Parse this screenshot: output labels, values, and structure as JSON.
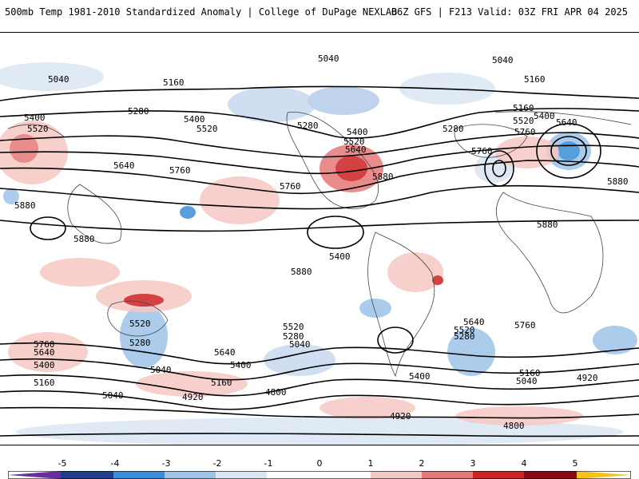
{
  "header": {
    "title_left": "500mb Temp 1981-2010 Standardized Anomaly | College of DuPage NEXLAB",
    "title_right": "06Z GFS | F213 Valid: 03Z FRI APR 04 2025"
  },
  "map": {
    "contour_labels": [
      "5040",
      "5040",
      "5040",
      "5160",
      "5160",
      "5160",
      "5280",
      "5280",
      "5280",
      "5400",
      "5400",
      "5400",
      "5400",
      "5400",
      "5520",
      "5520",
      "5520",
      "5520",
      "5640",
      "5640",
      "5640",
      "5760",
      "5760",
      "5760",
      "5760",
      "5880",
      "5880",
      "5880",
      "5880",
      "5880",
      "5880",
      "5520",
      "5280",
      "5760",
      "5640",
      "5400",
      "5160",
      "5040",
      "5640",
      "5520",
      "5400",
      "5280",
      "5160",
      "5040",
      "4920",
      "4920",
      "4800",
      "4800",
      "5040",
      "5520",
      "5400",
      "5280",
      "5640",
      "5760",
      "5160",
      "5040",
      "4920"
    ]
  },
  "colorbar": {
    "ticks": [
      "-5",
      "-4",
      "-3",
      "-2",
      "-1",
      "0",
      "1",
      "2",
      "3",
      "4",
      "5"
    ],
    "colors": [
      "#6a2ea0",
      "#1f3f8a",
      "#3a8ed8",
      "#9cc3e8",
      "#dbe6f2",
      "#ffffff",
      "#ffffff",
      "#f6c8c4",
      "#e47a78",
      "#cc2222",
      "#8a0a14",
      "#f2c418"
    ]
  }
}
